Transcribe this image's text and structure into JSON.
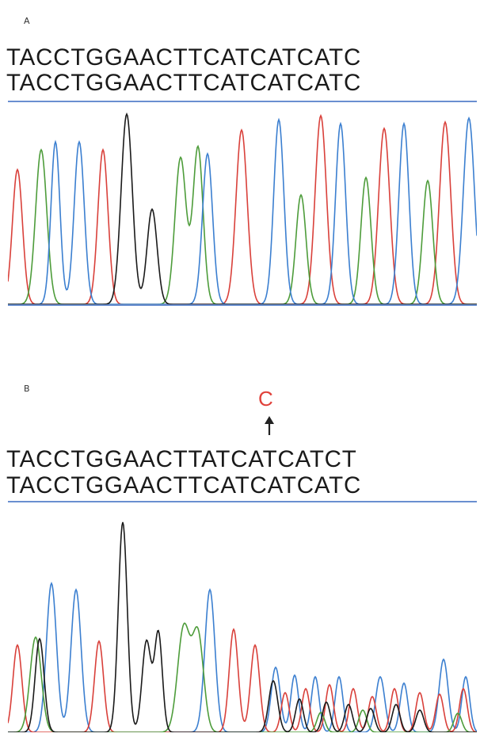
{
  "panelA": {
    "label": "A",
    "seq_top": "TACCTGGAACTTCATCATCATC",
    "seq_bottom": "TACCTGGAACTTCATCATCATC"
  },
  "panelB": {
    "label": "B",
    "mutation_base": "C",
    "seq_top": "TACCTGGAACTTATCATCATCT",
    "seq_bottom": "TACCTGGAACTTCATCATCATC"
  },
  "colors": {
    "A": "#4d9c3a",
    "C": "#3b7fd0",
    "G": "#1a1a1a",
    "T": "#d9403a",
    "frame": "#6a8fd0"
  }
}
